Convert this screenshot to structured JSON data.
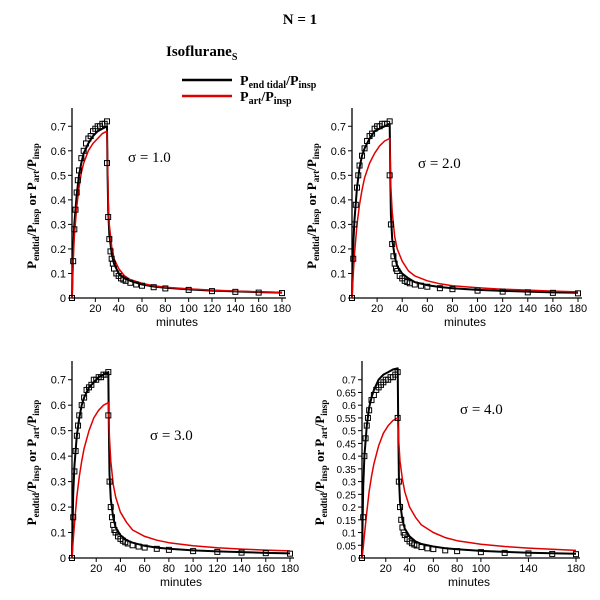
{
  "header": {
    "title": "N = 1",
    "agent": "Isoflurane",
    "agent_sub": "S"
  },
  "legend": {
    "items": [
      {
        "main": "P",
        "sub": "end tidal",
        "mid": "/P",
        "sub2": "insp",
        "color": "#000000"
      },
      {
        "main": "P",
        "sub": "art",
        "mid": "/P",
        "sub2": "insp",
        "color": "#e00000"
      }
    ]
  },
  "ylabel": {
    "p1": "P",
    "s1": "endtid",
    "m1": "/P",
    "s2": "insp",
    "or": " or ",
    "p2": "P",
    "s3": "art",
    "m2": "/P",
    "s4": "insp"
  },
  "colors": {
    "end_tidal": "#000000",
    "arterial": "#e00000",
    "markers": "#000000"
  },
  "chart_data": [
    {
      "type": "line",
      "annotation": "σ = 1.0",
      "xlabel": "minutes",
      "xlim": [
        0,
        180
      ],
      "ylim": [
        0,
        0.75
      ],
      "xticks": [
        20,
        40,
        60,
        80,
        100,
        120,
        140,
        160,
        180
      ],
      "xtick_labels": [
        "20",
        "40",
        "60",
        "80",
        "100",
        "120",
        "140",
        "160",
        "180"
      ],
      "yticks": [
        0,
        0.1,
        0.2,
        0.3,
        0.4,
        0.5,
        0.6,
        0.7
      ],
      "ytick_labels": [
        "0",
        "0.1",
        "0.2",
        "0.3",
        "0.4",
        "0.5",
        "0.6",
        "0.7"
      ],
      "series": [
        {
          "name": "Pend tidal/Pinsp",
          "x": [
            0,
            1,
            2,
            4,
            6,
            8,
            10,
            14,
            18,
            22,
            26,
            30,
            30.5,
            31,
            32,
            34,
            36,
            40,
            45,
            50,
            60,
            70,
            80,
            100,
            120,
            140,
            160,
            180
          ],
          "y": [
            0,
            0.2,
            0.3,
            0.42,
            0.5,
            0.55,
            0.59,
            0.63,
            0.66,
            0.68,
            0.69,
            0.7,
            0.5,
            0.36,
            0.26,
            0.18,
            0.14,
            0.1,
            0.08,
            0.07,
            0.055,
            0.047,
            0.042,
            0.035,
            0.03,
            0.027,
            0.024,
            0.022
          ]
        },
        {
          "name": "Part/Pinsp",
          "x": [
            0,
            1,
            2,
            4,
            6,
            8,
            10,
            14,
            18,
            22,
            26,
            30,
            31,
            32,
            34,
            36,
            40,
            45,
            50,
            60,
            70,
            80,
            100,
            120,
            140,
            160,
            180
          ],
          "y": [
            0,
            0.15,
            0.25,
            0.37,
            0.45,
            0.51,
            0.55,
            0.6,
            0.63,
            0.65,
            0.67,
            0.68,
            0.4,
            0.3,
            0.21,
            0.16,
            0.12,
            0.09,
            0.075,
            0.06,
            0.05,
            0.044,
            0.037,
            0.032,
            0.028,
            0.025,
            0.023
          ]
        },
        {
          "name": "",
          "marker": "square",
          "x": [
            0,
            1,
            2,
            3,
            4,
            5,
            6,
            8,
            10,
            12,
            14,
            16,
            18,
            20,
            22,
            24,
            26,
            28,
            30,
            30,
            31,
            32,
            33,
            34,
            35,
            36,
            38,
            40,
            42,
            44,
            46,
            50,
            55,
            60,
            70,
            80,
            100,
            120,
            140,
            160,
            180
          ],
          "y": [
            0,
            0.15,
            0.28,
            0.36,
            0.43,
            0.48,
            0.52,
            0.57,
            0.6,
            0.63,
            0.65,
            0.66,
            0.68,
            0.69,
            0.7,
            0.7,
            0.71,
            0.71,
            0.72,
            0.55,
            0.33,
            0.24,
            0.19,
            0.16,
            0.14,
            0.12,
            0.1,
            0.09,
            0.08,
            0.075,
            0.07,
            0.062,
            0.055,
            0.05,
            0.044,
            0.039,
            0.033,
            0.028,
            0.025,
            0.022,
            0.02
          ]
        }
      ]
    },
    {
      "type": "line",
      "annotation": "σ = 2.0",
      "xlabel": "minutes",
      "xlim": [
        0,
        180
      ],
      "ylim": [
        0,
        0.75
      ],
      "xticks": [
        20,
        40,
        60,
        80,
        100,
        120,
        140,
        160,
        180
      ],
      "xtick_labels": [
        "20",
        "40",
        "60",
        "80",
        "100",
        "120",
        "140",
        "160",
        "180"
      ],
      "yticks": [
        0,
        0.1,
        0.2,
        0.3,
        0.4,
        0.5,
        0.6,
        0.7
      ],
      "ytick_labels": [
        "0",
        "0.1",
        "0.2",
        "0.3",
        "0.4",
        "0.5",
        "0.6",
        "0.7"
      ],
      "series": [
        {
          "name": "Pend tidal/Pinsp",
          "x": [
            0,
            1,
            2,
            4,
            6,
            8,
            10,
            14,
            18,
            22,
            26,
            30,
            30.5,
            31,
            32,
            34,
            36,
            40,
            45,
            50,
            60,
            70,
            80,
            100,
            120,
            140,
            160,
            180
          ],
          "y": [
            0,
            0.22,
            0.32,
            0.45,
            0.53,
            0.58,
            0.61,
            0.65,
            0.68,
            0.69,
            0.7,
            0.71,
            0.5,
            0.34,
            0.24,
            0.17,
            0.13,
            0.1,
            0.08,
            0.065,
            0.052,
            0.045,
            0.04,
            0.033,
            0.029,
            0.026,
            0.023,
            0.021
          ]
        },
        {
          "name": "Part/Pinsp",
          "x": [
            0,
            1,
            2,
            4,
            6,
            8,
            10,
            14,
            18,
            22,
            26,
            30,
            31,
            32,
            34,
            36,
            40,
            45,
            50,
            60,
            70,
            80,
            100,
            120,
            140,
            160,
            180
          ],
          "y": [
            0,
            0.1,
            0.18,
            0.3,
            0.38,
            0.44,
            0.49,
            0.55,
            0.59,
            0.62,
            0.64,
            0.65,
            0.45,
            0.35,
            0.25,
            0.2,
            0.15,
            0.11,
            0.09,
            0.07,
            0.058,
            0.05,
            0.042,
            0.036,
            0.032,
            0.028,
            0.025
          ]
        },
        {
          "name": "",
          "marker": "square",
          "x": [
            0,
            1,
            2,
            3,
            4,
            5,
            6,
            8,
            10,
            12,
            14,
            16,
            18,
            20,
            22,
            24,
            26,
            28,
            30,
            30,
            31,
            32,
            33,
            34,
            35,
            36,
            38,
            40,
            42,
            44,
            46,
            50,
            55,
            60,
            70,
            80,
            100,
            120,
            140,
            160,
            180
          ],
          "y": [
            0,
            0.16,
            0.3,
            0.38,
            0.45,
            0.5,
            0.54,
            0.58,
            0.61,
            0.64,
            0.66,
            0.67,
            0.69,
            0.7,
            0.7,
            0.71,
            0.71,
            0.71,
            0.72,
            0.5,
            0.3,
            0.22,
            0.17,
            0.14,
            0.12,
            0.11,
            0.09,
            0.08,
            0.07,
            0.065,
            0.06,
            0.055,
            0.05,
            0.046,
            0.04,
            0.036,
            0.03,
            0.026,
            0.023,
            0.021,
            0.019
          ]
        }
      ]
    },
    {
      "type": "line",
      "annotation": "σ = 3.0",
      "xlabel": "minutes",
      "xlim": [
        0,
        180
      ],
      "ylim": [
        0,
        0.75
      ],
      "xticks": [
        20,
        40,
        60,
        80,
        100,
        120,
        140,
        160,
        180
      ],
      "xtick_labels": [
        "20",
        "40",
        "60",
        "80",
        "100",
        "120",
        "140",
        "160",
        "180"
      ],
      "yticks": [
        0,
        0.1,
        0.2,
        0.3,
        0.4,
        0.5,
        0.6,
        0.7
      ],
      "ytick_labels": [
        "0",
        "0.1",
        "0.2",
        "0.3",
        "0.4",
        "0.5",
        "0.6",
        "0.7"
      ],
      "series": [
        {
          "name": "Pend tidal/Pinsp",
          "x": [
            0,
            1,
            2,
            4,
            6,
            8,
            10,
            14,
            18,
            22,
            26,
            30,
            30.5,
            31,
            32,
            34,
            36,
            40,
            45,
            50,
            60,
            70,
            80,
            100,
            120,
            140,
            160,
            180
          ],
          "y": [
            0,
            0.25,
            0.36,
            0.48,
            0.55,
            0.6,
            0.63,
            0.67,
            0.69,
            0.71,
            0.72,
            0.73,
            0.5,
            0.33,
            0.23,
            0.16,
            0.12,
            0.09,
            0.07,
            0.06,
            0.048,
            0.041,
            0.036,
            0.03,
            0.026,
            0.023,
            0.02,
            0.018
          ]
        },
        {
          "name": "Part/Pinsp",
          "x": [
            0,
            1,
            2,
            4,
            6,
            8,
            10,
            14,
            18,
            22,
            26,
            30,
            31,
            32,
            34,
            36,
            40,
            45,
            50,
            60,
            70,
            80,
            100,
            120,
            140,
            160,
            180
          ],
          "y": [
            0,
            0.07,
            0.13,
            0.24,
            0.32,
            0.38,
            0.43,
            0.5,
            0.55,
            0.58,
            0.6,
            0.61,
            0.47,
            0.38,
            0.29,
            0.24,
            0.18,
            0.14,
            0.11,
            0.085,
            0.07,
            0.06,
            0.048,
            0.04,
            0.035,
            0.031,
            0.028
          ]
        },
        {
          "name": "",
          "marker": "square",
          "x": [
            0,
            1,
            2,
            3,
            4,
            5,
            6,
            8,
            10,
            12,
            14,
            16,
            18,
            20,
            22,
            24,
            26,
            28,
            30,
            30,
            31,
            32,
            33,
            34,
            35,
            36,
            38,
            40,
            42,
            44,
            46,
            50,
            55,
            60,
            70,
            80,
            100,
            120,
            140,
            160,
            180
          ],
          "y": [
            0,
            0.16,
            0.34,
            0.42,
            0.48,
            0.52,
            0.56,
            0.6,
            0.63,
            0.66,
            0.67,
            0.68,
            0.7,
            0.7,
            0.71,
            0.71,
            0.72,
            0.72,
            0.73,
            0.56,
            0.3,
            0.2,
            0.16,
            0.13,
            0.11,
            0.1,
            0.085,
            0.075,
            0.068,
            0.062,
            0.057,
            0.05,
            0.045,
            0.041,
            0.036,
            0.032,
            0.027,
            0.024,
            0.021,
            0.019,
            0.017
          ]
        }
      ]
    },
    {
      "type": "line",
      "annotation": "σ = 4.0",
      "xlabel": "minutes",
      "xlim": [
        0,
        180
      ],
      "ylim": [
        0,
        0.75
      ],
      "xticks": [
        20,
        40,
        60,
        80,
        100,
        140,
        180
      ],
      "xtick_labels": [
        "20",
        "40",
        "60",
        "80",
        "100",
        "140",
        "180"
      ],
      "yticks": [
        0,
        0.05,
        0.1,
        0.15,
        0.2,
        0.25,
        0.3,
        0.35,
        0.4,
        0.45,
        0.5,
        0.55,
        0.6,
        0.65,
        0.7
      ],
      "ytick_labels": [
        "0",
        "0.05",
        "0.1",
        "0.15",
        "0.2",
        "0.25",
        "0.3",
        "0.35",
        "0.4",
        "0.45",
        "0.5",
        "0.55",
        "0.6",
        "0.65",
        "0.7"
      ],
      "series": [
        {
          "name": "Pend tidal/Pinsp",
          "x": [
            0,
            1,
            2,
            4,
            6,
            8,
            10,
            14,
            18,
            22,
            26,
            30,
            30.5,
            31,
            32,
            34,
            36,
            40,
            45,
            50,
            60,
            70,
            80,
            100,
            120,
            140,
            160,
            180
          ],
          "y": [
            0,
            0.28,
            0.4,
            0.52,
            0.59,
            0.63,
            0.66,
            0.7,
            0.72,
            0.73,
            0.74,
            0.745,
            0.5,
            0.32,
            0.22,
            0.15,
            0.115,
            0.085,
            0.065,
            0.055,
            0.045,
            0.038,
            0.034,
            0.028,
            0.024,
            0.021,
            0.019,
            0.017
          ]
        },
        {
          "name": "Part/Pinsp",
          "x": [
            0,
            1,
            2,
            4,
            6,
            8,
            10,
            14,
            18,
            22,
            26,
            30,
            31,
            32,
            34,
            36,
            40,
            45,
            50,
            60,
            70,
            80,
            100,
            120,
            140,
            160,
            180
          ],
          "y": [
            0,
            0.04,
            0.09,
            0.18,
            0.26,
            0.32,
            0.37,
            0.44,
            0.49,
            0.52,
            0.54,
            0.55,
            0.45,
            0.38,
            0.31,
            0.26,
            0.2,
            0.16,
            0.13,
            0.1,
            0.08,
            0.068,
            0.054,
            0.045,
            0.039,
            0.034,
            0.03
          ]
        },
        {
          "name": "",
          "marker": "square",
          "x": [
            0,
            1,
            2,
            3,
            4,
            5,
            6,
            8,
            10,
            12,
            14,
            16,
            18,
            20,
            22,
            24,
            26,
            28,
            30,
            30,
            31,
            32,
            33,
            34,
            35,
            36,
            38,
            40,
            42,
            44,
            46,
            50,
            55,
            60,
            70,
            80,
            100,
            120,
            140,
            160,
            180
          ],
          "y": [
            0,
            0.16,
            0.4,
            0.47,
            0.52,
            0.55,
            0.58,
            0.62,
            0.64,
            0.66,
            0.67,
            0.68,
            0.69,
            0.7,
            0.7,
            0.71,
            0.71,
            0.72,
            0.73,
            0.55,
            0.3,
            0.2,
            0.15,
            0.12,
            0.1,
            0.09,
            0.075,
            0.065,
            0.058,
            0.053,
            0.049,
            0.043,
            0.038,
            0.035,
            0.03,
            0.027,
            0.023,
            0.02,
            0.018,
            0.016,
            0.015
          ]
        }
      ]
    }
  ]
}
